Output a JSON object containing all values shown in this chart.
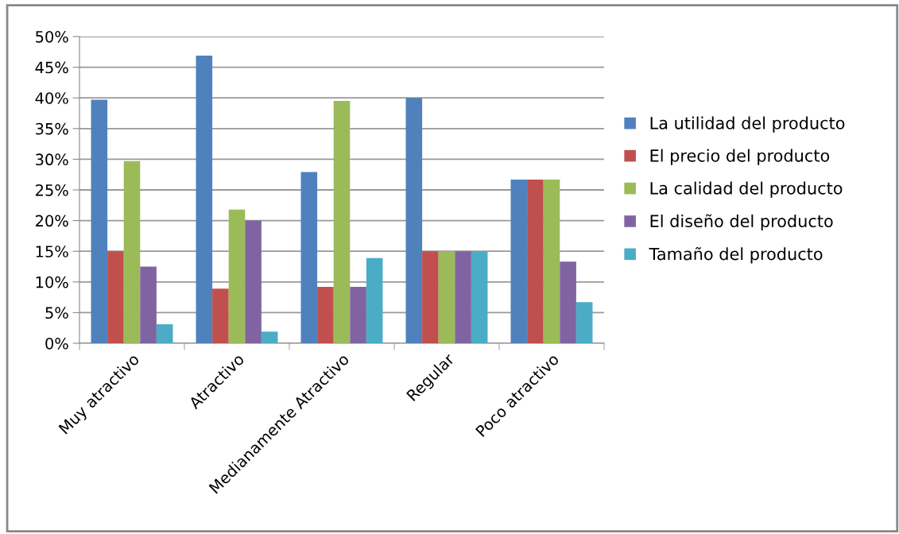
{
  "chart_data": {
    "type": "bar",
    "categories": [
      "Muy atractivo",
      "Atractivo",
      "Medianamente Atractivo",
      "Regular",
      "Poco atractivo"
    ],
    "series": [
      {
        "name": "La utilidad del producto",
        "color": "#4f81bd",
        "values": [
          39.7,
          46.9,
          27.9,
          40,
          26.7
        ]
      },
      {
        "name": "El precio del producto",
        "color": "#c0504d",
        "values": [
          15,
          8.9,
          9.2,
          15,
          26.7
        ]
      },
      {
        "name": "La calidad del producto",
        "color": "#9bbb59",
        "values": [
          29.7,
          21.8,
          39.5,
          15,
          26.7
        ]
      },
      {
        "name": "El diseño del producto",
        "color": "#8064a2",
        "values": [
          12.5,
          20,
          9.2,
          15,
          13.3
        ]
      },
      {
        "name": "Tamaño del producto",
        "color": "#4bacc6",
        "values": [
          3.1,
          1.9,
          13.9,
          15,
          6.7
        ]
      }
    ],
    "ylim": [
      0,
      50
    ],
    "yticks": [
      {
        "value": 0,
        "label": "0%"
      },
      {
        "value": 5,
        "label": "5%"
      },
      {
        "value": 10,
        "label": "10%"
      },
      {
        "value": 15,
        "label": "15%"
      },
      {
        "value": 20,
        "label": "20%"
      },
      {
        "value": 25,
        "label": "25%"
      },
      {
        "value": 30,
        "label": "30%"
      },
      {
        "value": 35,
        "label": "35%"
      },
      {
        "value": 40,
        "label": "40%"
      },
      {
        "value": 45,
        "label": "45%"
      },
      {
        "value": 50,
        "label": "50%"
      }
    ],
    "grid": "y",
    "legend": "right"
  }
}
